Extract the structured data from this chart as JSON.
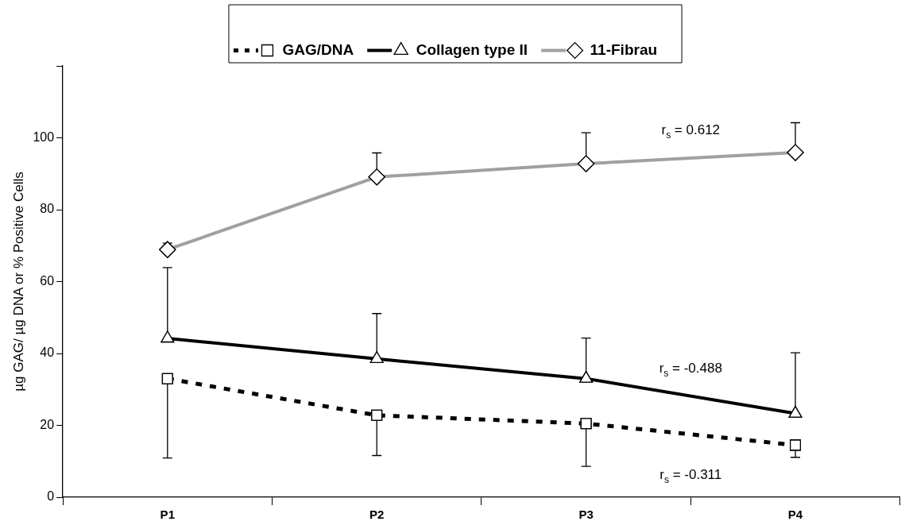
{
  "chart_data": {
    "type": "line",
    "ylabel": "µg GAG/ µg DNA or % Positive Cells",
    "categories": [
      "P1",
      "P2",
      "P3",
      "P4"
    ],
    "ylim": [
      0,
      120
    ],
    "yticks": [
      0,
      20,
      40,
      60,
      80,
      100,
      {
        "value": 120,
        "label": null
      }
    ],
    "grid": false,
    "legend": "top",
    "series": [
      {
        "name": "GAG/DNA",
        "color": "#000000",
        "marker": "square",
        "line_style": "dashed",
        "values": [
          33,
          22.8,
          20.5,
          14.5
        ],
        "errors": [
          [
            10.9,
            33
          ],
          [
            11.6,
            22.8
          ],
          [
            8.6,
            20.5
          ],
          [
            11.1,
            14.5
          ]
        ]
      },
      {
        "name": "Collagen type II",
        "color": "#000000",
        "marker": "triangle",
        "line_style": "solid",
        "values": [
          44.2,
          38.5,
          33,
          23.3
        ],
        "errors": [
          [
            44.2,
            63.9
          ],
          [
            38.5,
            51.1
          ],
          [
            33,
            44.3
          ],
          [
            23.3,
            40.2
          ]
        ]
      },
      {
        "name": "11-Fibrau",
        "color": "#a0a0a0",
        "marker": "diamond",
        "line_style": "solid",
        "values": [
          68.9,
          89.1,
          92.8,
          95.9
        ],
        "errors": [
          [
            68.9,
            70.7
          ],
          [
            89.1,
            95.8
          ],
          [
            92.8,
            101.4
          ],
          [
            95.9,
            104.2
          ]
        ]
      }
    ],
    "annotations": [
      "r$_{s}$ = 0.612",
      "r$_{s}$ = -0.488",
      "r$_{s}$ = -0.311"
    ]
  }
}
